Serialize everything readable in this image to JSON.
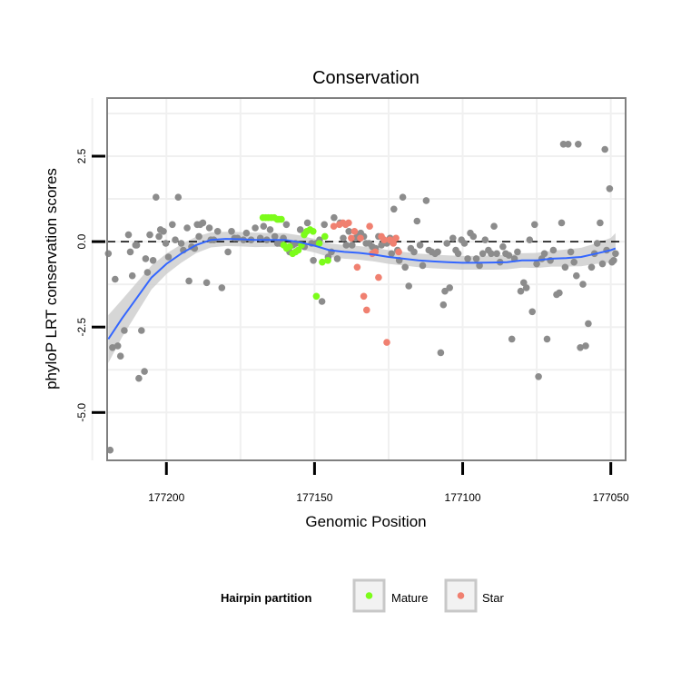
{
  "chart_data": {
    "type": "scatter",
    "title": "Conservation",
    "xlabel": "Genomic Position",
    "ylabel": "phyloP LRT conservation scores",
    "x_reversed": true,
    "xlim": [
      177220.0,
      177045.0
    ],
    "ylim": [
      -6.4,
      4.2
    ],
    "x_ticks": [
      177200,
      177150,
      177100,
      177050
    ],
    "x_tick_labels": [
      "177200",
      "177150",
      "177100",
      "177050"
    ],
    "y_ticks": [
      -5.0,
      -2.5,
      0.0,
      2.5
    ],
    "y_tick_labels": [
      "-5.0",
      "-2.5",
      "0.0",
      "2.5"
    ],
    "grid": true,
    "reference_line": {
      "y": 0,
      "style": "dashed"
    },
    "legend": {
      "title": "Hairpin partition",
      "position": "bottom",
      "items": [
        {
          "label": "Mature",
          "color": "#7CFC1A"
        },
        {
          "label": "Star",
          "color": "#F08070"
        }
      ]
    },
    "colors": {
      "other": "#8c8c8c",
      "mature": "#7CFC1A",
      "star": "#F08070",
      "smooth": "#3366FF",
      "ribbon": "#cccccc"
    },
    "series": [
      {
        "group": "other",
        "points": [
          [
            177219.6,
            -0.35
          ],
          [
            177219.0,
            -6.1
          ],
          [
            177218.2,
            -3.1
          ],
          [
            177217.3,
            -1.1
          ],
          [
            177216.4,
            -3.05
          ],
          [
            177215.5,
            -3.35
          ],
          [
            177214.2,
            -2.6
          ],
          [
            177212.8,
            0.2
          ],
          [
            177212.2,
            -0.3
          ],
          [
            177211.5,
            -1.0
          ],
          [
            177210.4,
            -0.1
          ],
          [
            177210.0,
            -0.1
          ],
          [
            177209.3,
            -4.0
          ],
          [
            177208.4,
            -2.6
          ],
          [
            177207.4,
            -3.8
          ],
          [
            177207.0,
            -0.5
          ],
          [
            177206.4,
            -0.9
          ],
          [
            177205.6,
            0.2
          ],
          [
            177204.5,
            -0.55
          ],
          [
            177203.5,
            1.3
          ],
          [
            177202.5,
            0.15
          ],
          [
            177202.0,
            0.35
          ],
          [
            177201.0,
            0.3
          ],
          [
            177200.2,
            -0.05
          ],
          [
            177199.3,
            -0.45
          ],
          [
            177198.0,
            0.5
          ],
          [
            177197.0,
            0.05
          ],
          [
            177196.0,
            1.3
          ],
          [
            177195.0,
            -0.05
          ],
          [
            177194.3,
            -0.25
          ],
          [
            177193.0,
            0.4
          ],
          [
            177192.4,
            -1.15
          ],
          [
            177191.5,
            -0.15
          ],
          [
            177190.5,
            -0.2
          ],
          [
            177189.6,
            0.5
          ],
          [
            177189.0,
            0.15
          ],
          [
            177188.6,
            0.5
          ],
          [
            177187.7,
            0.55
          ],
          [
            177186.4,
            -1.2
          ],
          [
            177185.5,
            0.4
          ],
          [
            177185.0,
            0.05
          ],
          [
            177184.0,
            0.05
          ],
          [
            177182.7,
            0.3
          ],
          [
            177181.3,
            -1.35
          ],
          [
            177179.2,
            -0.3
          ],
          [
            177178.0,
            0.3
          ],
          [
            177177.0,
            0.1
          ],
          [
            177176.0,
            0.1
          ],
          [
            177174.0,
            0.05
          ],
          [
            177173.0,
            0.25
          ],
          [
            177171.4,
            0.05
          ],
          [
            177170.0,
            0.4
          ],
          [
            177168.3,
            0.1
          ],
          [
            177167.2,
            0.45
          ],
          [
            177166.1,
            0.05
          ],
          [
            177165.0,
            0.35
          ],
          [
            177163.4,
            0.15
          ],
          [
            177162.5,
            -0.05
          ],
          [
            177161.6,
            -0.05
          ],
          [
            177160.5,
            0.1
          ],
          [
            177159.5,
            0.5
          ],
          [
            177158.4,
            -0.3
          ],
          [
            177157.4,
            -0.1
          ],
          [
            177156.4,
            -0.05
          ],
          [
            177154.8,
            0.35
          ],
          [
            177153.4,
            -0.15
          ],
          [
            177152.4,
            0.55
          ],
          [
            177151.0,
            -0.05
          ],
          [
            177150.4,
            -0.55
          ],
          [
            177149.4,
            -0.05
          ],
          [
            177148.3,
            0.05
          ],
          [
            177147.5,
            -1.75
          ],
          [
            177146.7,
            0.5
          ],
          [
            177145.4,
            -0.45
          ],
          [
            177144.3,
            -0.3
          ],
          [
            177143.4,
            0.7
          ],
          [
            177142.3,
            -0.5
          ],
          [
            177141.4,
            0.55
          ],
          [
            177140.3,
            0.1
          ],
          [
            177139.3,
            -0.1
          ],
          [
            177138.4,
            0.3
          ],
          [
            177137.3,
            -0.1
          ],
          [
            177136.2,
            0.1
          ],
          [
            177135.4,
            0.15
          ],
          [
            177134.4,
            0.25
          ],
          [
            177133.4,
            0.15
          ],
          [
            177132.6,
            -0.05
          ],
          [
            177131.6,
            -0.05
          ],
          [
            177130.5,
            -0.15
          ],
          [
            177129.4,
            -0.2
          ],
          [
            177128.4,
            0.15
          ],
          [
            177127.4,
            -0.1
          ],
          [
            177126.6,
            0.05
          ],
          [
            177125.6,
            -0.05
          ],
          [
            177124.5,
            0.1
          ],
          [
            177124.0,
            -0.35
          ],
          [
            177123.2,
            0.95
          ],
          [
            177122.0,
            -0.25
          ],
          [
            177121.4,
            -0.55
          ],
          [
            177120.2,
            1.3
          ],
          [
            177119.4,
            -0.75
          ],
          [
            177118.2,
            -1.3
          ],
          [
            177117.5,
            -0.2
          ],
          [
            177116.4,
            -0.3
          ],
          [
            177115.4,
            0.6
          ],
          [
            177114.4,
            -0.1
          ],
          [
            177113.5,
            -0.7
          ],
          [
            177112.3,
            1.2
          ],
          [
            177111.4,
            -0.25
          ],
          [
            177110.4,
            -0.3
          ],
          [
            177109.3,
            -0.35
          ],
          [
            177108.4,
            -0.3
          ],
          [
            177107.4,
            -3.25
          ],
          [
            177106.5,
            -1.85
          ],
          [
            177106.0,
            -1.45
          ],
          [
            177105.3,
            -0.05
          ],
          [
            177104.4,
            -1.35
          ],
          [
            177103.3,
            0.1
          ],
          [
            177102.3,
            -0.25
          ],
          [
            177101.5,
            -0.35
          ],
          [
            177100.4,
            0.05
          ],
          [
            177099.4,
            -0.05
          ],
          [
            177098.3,
            -0.5
          ],
          [
            177097.4,
            0.25
          ],
          [
            177096.4,
            0.15
          ],
          [
            177095.4,
            -0.5
          ],
          [
            177094.3,
            -0.7
          ],
          [
            177093.2,
            -0.35
          ],
          [
            177092.4,
            0.05
          ],
          [
            177091.3,
            -0.25
          ],
          [
            177090.4,
            -0.35
          ],
          [
            177089.4,
            0.45
          ],
          [
            177088.5,
            -0.35
          ],
          [
            177087.4,
            -0.6
          ],
          [
            177086.4,
            -0.15
          ],
          [
            177085.5,
            -0.35
          ],
          [
            177084.4,
            -0.4
          ],
          [
            177083.4,
            -2.85
          ],
          [
            177082.5,
            -0.5
          ],
          [
            177081.5,
            -0.3
          ],
          [
            177080.4,
            -1.45
          ],
          [
            177079.4,
            -1.2
          ],
          [
            177078.5,
            -1.35
          ],
          [
            177077.4,
            0.05
          ],
          [
            177076.5,
            -2.05
          ],
          [
            177075.7,
            0.5
          ],
          [
            177075.0,
            -0.65
          ],
          [
            177074.4,
            -3.95
          ],
          [
            177073.3,
            -0.5
          ],
          [
            177072.4,
            -0.35
          ],
          [
            177071.5,
            -2.85
          ],
          [
            177070.4,
            -0.55
          ],
          [
            177069.4,
            -0.25
          ],
          [
            177068.3,
            -1.55
          ],
          [
            177067.4,
            -1.5
          ],
          [
            177066.6,
            0.55
          ],
          [
            177066.0,
            2.85
          ],
          [
            177065.4,
            -0.75
          ],
          [
            177064.4,
            2.85
          ],
          [
            177063.5,
            -0.3
          ],
          [
            177062.4,
            -0.6
          ],
          [
            177061.6,
            -1.0
          ],
          [
            177061.0,
            2.85
          ],
          [
            177060.3,
            -3.1
          ],
          [
            177059.4,
            -1.25
          ],
          [
            177058.5,
            -3.05
          ],
          [
            177057.6,
            -2.4
          ],
          [
            177056.5,
            -0.75
          ],
          [
            177055.5,
            -0.35
          ],
          [
            177054.6,
            -0.05
          ],
          [
            177053.6,
            0.55
          ],
          [
            177052.8,
            -0.65
          ],
          [
            177052.0,
            2.7
          ],
          [
            177051.4,
            -0.25
          ],
          [
            177050.4,
            1.55
          ],
          [
            177049.6,
            -0.6
          ],
          [
            177049.0,
            -0.55
          ],
          [
            177048.4,
            -0.35
          ]
        ]
      },
      {
        "group": "mature",
        "name": "Mature",
        "points": [
          [
            177167.4,
            0.7
          ],
          [
            177166.5,
            0.7
          ],
          [
            177165.6,
            0.7
          ],
          [
            177164.6,
            0.7
          ],
          [
            177163.6,
            0.7
          ],
          [
            177162.6,
            0.65
          ],
          [
            177162.0,
            0.65
          ],
          [
            177161.2,
            0.65
          ],
          [
            177160.4,
            -0.1
          ],
          [
            177159.4,
            -0.2
          ],
          [
            177158.4,
            -0.15
          ],
          [
            177157.4,
            -0.35
          ],
          [
            177156.4,
            -0.3
          ],
          [
            177155.5,
            -0.25
          ],
          [
            177154.4,
            -0.1
          ],
          [
            177153.5,
            0.2
          ],
          [
            177152.6,
            0.3
          ],
          [
            177151.5,
            0.35
          ],
          [
            177150.5,
            0.3
          ],
          [
            177149.4,
            -1.6
          ],
          [
            177148.4,
            -0.05
          ],
          [
            177147.4,
            -0.6
          ],
          [
            177146.5,
            0.15
          ],
          [
            177145.5,
            -0.55
          ]
        ]
      },
      {
        "group": "star",
        "name": "Star",
        "points": [
          [
            177143.5,
            0.45
          ],
          [
            177141.6,
            0.5
          ],
          [
            177140.4,
            0.55
          ],
          [
            177139.5,
            0.5
          ],
          [
            177138.5,
            0.55
          ],
          [
            177137.6,
            0.1
          ],
          [
            177136.5,
            0.3
          ],
          [
            177135.6,
            -0.75
          ],
          [
            177134.5,
            0.1
          ],
          [
            177133.4,
            -1.6
          ],
          [
            177132.4,
            -2.0
          ],
          [
            177131.4,
            0.45
          ],
          [
            177130.5,
            -0.35
          ],
          [
            177129.5,
            -0.3
          ],
          [
            177128.4,
            -1.05
          ],
          [
            177127.4,
            0.15
          ],
          [
            177126.5,
            0.05
          ],
          [
            177125.6,
            -2.95
          ],
          [
            177124.6,
            0.05
          ],
          [
            177123.4,
            -0.05
          ],
          [
            177122.5,
            0.1
          ],
          [
            177121.6,
            -0.3
          ]
        ]
      }
    ],
    "smooth": {
      "method": "loess",
      "x": [
        177219.6,
        177215,
        177210,
        177205,
        177200,
        177195,
        177190,
        177185,
        177180,
        177175,
        177170,
        177165,
        177160,
        177155,
        177150,
        177145,
        177140,
        177135,
        177130,
        177125,
        177120,
        177115,
        177110,
        177105,
        177100,
        177095,
        177090,
        177085,
        177080,
        177075,
        177070,
        177065,
        177060,
        177055,
        177050,
        177048.4
      ],
      "y": [
        -2.85,
        -2.25,
        -1.65,
        -1.05,
        -0.65,
        -0.35,
        -0.1,
        0.05,
        0.08,
        0.07,
        0.05,
        0.05,
        0.05,
        -0.02,
        -0.12,
        -0.25,
        -0.3,
        -0.33,
        -0.38,
        -0.45,
        -0.5,
        -0.55,
        -0.58,
        -0.6,
        -0.62,
        -0.62,
        -0.61,
        -0.6,
        -0.55,
        -0.55,
        -0.5,
        -0.48,
        -0.45,
        -0.35,
        -0.25,
        -0.2
      ],
      "se": [
        0.7,
        0.55,
        0.45,
        0.35,
        0.3,
        0.27,
        0.24,
        0.22,
        0.21,
        0.21,
        0.21,
        0.2,
        0.2,
        0.2,
        0.2,
        0.2,
        0.2,
        0.2,
        0.2,
        0.2,
        0.2,
        0.2,
        0.2,
        0.2,
        0.2,
        0.2,
        0.21,
        0.21,
        0.21,
        0.22,
        0.23,
        0.25,
        0.27,
        0.3,
        0.36,
        0.45
      ]
    }
  }
}
